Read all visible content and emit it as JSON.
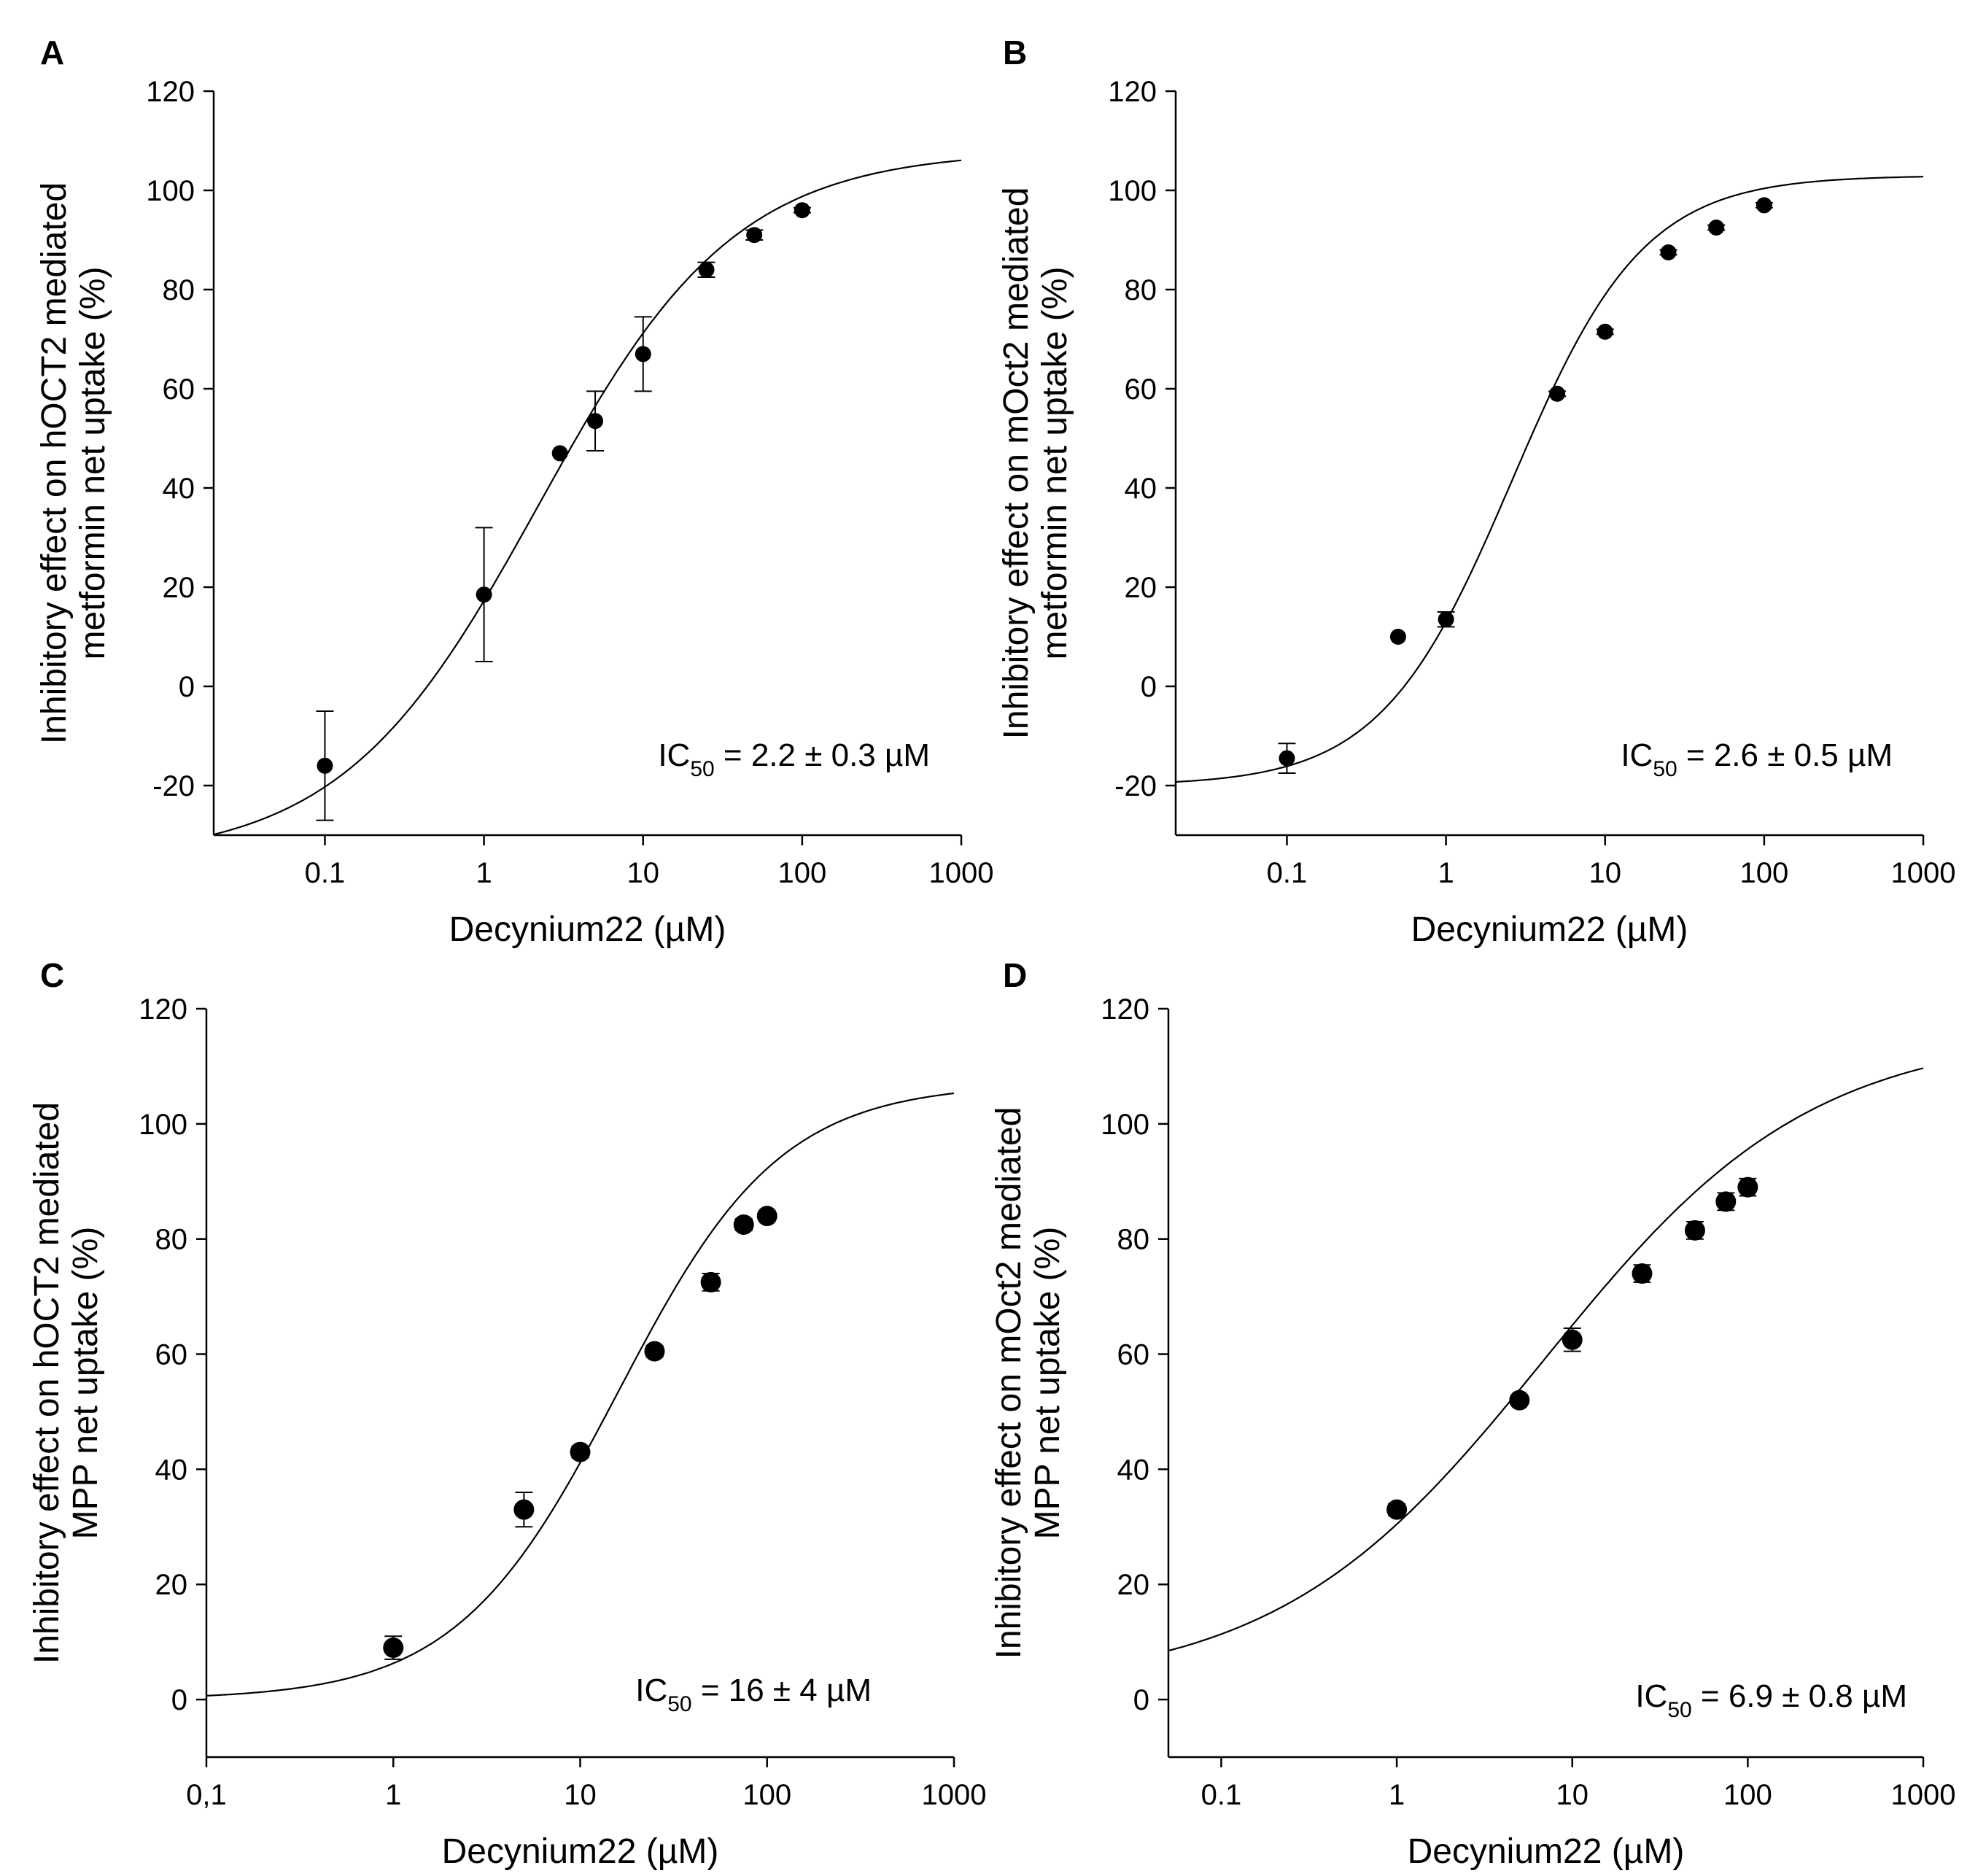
{
  "chart_data": [
    {
      "type": "scatter",
      "panel_label": "A",
      "ylabel_line1": "Inhibitory effect on hOCT2 mediated",
      "ylabel_line2": "metformin net uptake (%)",
      "xlabel": "Decynium22 (µM)",
      "xscale": "log",
      "xlim": [
        0.02,
        1000
      ],
      "ylim": [
        -30,
        120
      ],
      "xticks": [
        0.1,
        1,
        10,
        100,
        1000
      ],
      "xtick_labels": [
        "0.1",
        "1",
        "10",
        "100",
        "1000"
      ],
      "yticks": [
        -20,
        0,
        20,
        40,
        60,
        80,
        100,
        120
      ],
      "ytick_labels": [
        "-20",
        "0",
        "20",
        "40",
        "60",
        "80",
        "100",
        "120"
      ],
      "annotation": {
        "prefix": "IC",
        "subscript": "50",
        "suffix": " = 2.2 ± 0.3 µM"
      },
      "points": [
        {
          "x": 0.1,
          "y": -16,
          "err": 11
        },
        {
          "x": 1,
          "y": 18.5,
          "err": 13.5
        },
        {
          "x": 3,
          "y": 47,
          "err": 0
        },
        {
          "x": 5,
          "y": 53.5,
          "err": 6
        },
        {
          "x": 10,
          "y": 67,
          "err": 7.5
        },
        {
          "x": 25,
          "y": 84,
          "err": 1.5
        },
        {
          "x": 50,
          "y": 91,
          "err": 1
        },
        {
          "x": 100,
          "y": 96,
          "err": 0.5
        }
      ],
      "fit": {
        "bottom": -35,
        "top": 108,
        "ic50": 2.2,
        "hill": 0.7
      }
    },
    {
      "type": "scatter",
      "panel_label": "B",
      "ylabel_line1": "Inhibitory effect on mOct2 mediated",
      "ylabel_line2": "metformin net uptake (%)",
      "xlabel": "Decynium22 (µM)",
      "xscale": "log",
      "xlim": [
        0.02,
        1000
      ],
      "ylim": [
        -30,
        120
      ],
      "xticks": [
        0.1,
        1,
        10,
        100,
        1000
      ],
      "xtick_labels": [
        "0.1",
        "1",
        "10",
        "100",
        "1000"
      ],
      "yticks": [
        -20,
        0,
        20,
        40,
        60,
        80,
        100,
        120
      ],
      "ytick_labels": [
        "-20",
        "0",
        "20",
        "40",
        "60",
        "80",
        "100",
        "120"
      ],
      "annotation": {
        "prefix": "IC",
        "subscript": "50",
        "suffix": " = 2.6 ± 0.5 µM"
      },
      "points": [
        {
          "x": 0.1,
          "y": -14.5,
          "err": 3
        },
        {
          "x": 0.5,
          "y": 10,
          "err": 0
        },
        {
          "x": 1,
          "y": 13.5,
          "err": 1.5
        },
        {
          "x": 5,
          "y": 59,
          "err": 0.5
        },
        {
          "x": 10,
          "y": 71.5,
          "err": 0.5
        },
        {
          "x": 25,
          "y": 87.5,
          "err": 0.5
        },
        {
          "x": 50,
          "y": 92.5,
          "err": 0.5
        },
        {
          "x": 100,
          "y": 97,
          "err": 0.5
        }
      ],
      "fit": {
        "bottom": -20,
        "top": 103,
        "ic50": 2.6,
        "hill": 1.05
      }
    },
    {
      "type": "scatter",
      "panel_label": "C",
      "ylabel_line1": "Inhibitory effect on hOCT2 mediated",
      "ylabel_line2": "MPP net uptake (%)",
      "xlabel": "Decynium22 (µM)",
      "xscale": "log",
      "xlim": [
        0.1,
        1000
      ],
      "ylim": [
        -10,
        120
      ],
      "xticks": [
        0.1,
        1,
        10,
        100,
        1000
      ],
      "xtick_labels": [
        "0,1",
        "1",
        "10",
        "100",
        "1000"
      ],
      "yticks": [
        0,
        20,
        40,
        60,
        80,
        100,
        120
      ],
      "ytick_labels": [
        "0",
        "20",
        "40",
        "60",
        "80",
        "100",
        "120"
      ],
      "annotation": {
        "prefix": "IC",
        "subscript": "50",
        "suffix": " = 16 ± 4 µM"
      },
      "points": [
        {
          "x": 1,
          "y": 9,
          "err": 2
        },
        {
          "x": 5,
          "y": 33,
          "err": 3
        },
        {
          "x": 10,
          "y": 43,
          "err": 1
        },
        {
          "x": 25,
          "y": 60.5,
          "err": 1
        },
        {
          "x": 50,
          "y": 72.5,
          "err": 1.5
        },
        {
          "x": 75,
          "y": 82.5,
          "err": 1
        },
        {
          "x": 100,
          "y": 84,
          "err": 0.5
        }
      ],
      "fit": {
        "bottom": 0,
        "top": 107,
        "ic50": 16,
        "hill": 1.0
      }
    },
    {
      "type": "scatter",
      "panel_label": "D",
      "ylabel_line1": "Inhibitory effect on mOct2 mediated",
      "ylabel_line2": "MPP net uptake (%)",
      "xlabel": "Decynium22 (µM)",
      "xscale": "log",
      "xlim": [
        0.05,
        1000
      ],
      "ylim": [
        -10,
        120
      ],
      "xticks": [
        0.1,
        1,
        10,
        100,
        1000
      ],
      "xtick_labels": [
        "0.1",
        "1",
        "10",
        "100",
        "1000"
      ],
      "yticks": [
        0,
        20,
        40,
        60,
        80,
        100,
        120
      ],
      "ytick_labels": [
        "0",
        "20",
        "40",
        "60",
        "80",
        "100",
        "120"
      ],
      "annotation": {
        "prefix": "IC",
        "subscript": "50",
        "suffix": " = 6.9 ± 0.8 µM"
      },
      "points": [
        {
          "x": 1,
          "y": 33,
          "err": 1
        },
        {
          "x": 5,
          "y": 52,
          "err": 0.5
        },
        {
          "x": 10,
          "y": 62.5,
          "err": 2
        },
        {
          "x": 25,
          "y": 74,
          "err": 1.5
        },
        {
          "x": 50,
          "y": 81.5,
          "err": 1.5
        },
        {
          "x": 75,
          "y": 86.5,
          "err": 1.5
        },
        {
          "x": 100,
          "y": 89,
          "err": 1.5
        }
      ],
      "fit": {
        "bottom": 2,
        "top": 116,
        "ic50": 6.9,
        "hill": 0.57
      }
    }
  ]
}
